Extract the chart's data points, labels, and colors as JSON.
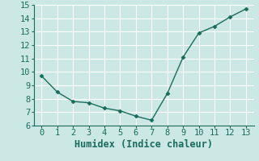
{
  "x": [
    0,
    1,
    2,
    3,
    4,
    5,
    6,
    7,
    8,
    9,
    10,
    11,
    12,
    13
  ],
  "y": [
    9.7,
    8.5,
    7.8,
    7.7,
    7.3,
    7.1,
    6.7,
    6.4,
    8.4,
    11.1,
    12.9,
    13.4,
    14.1,
    14.7
  ],
  "xlabel": "Humidex (Indice chaleur)",
  "ylim": [
    6,
    15
  ],
  "xlim": [
    -0.5,
    13.5
  ],
  "yticks": [
    6,
    7,
    8,
    9,
    10,
    11,
    12,
    13,
    14,
    15
  ],
  "xticks": [
    0,
    1,
    2,
    3,
    4,
    5,
    6,
    7,
    8,
    9,
    10,
    11,
    12,
    13
  ],
  "line_color": "#1a6b5a",
  "marker_color": "#1a6b5a",
  "bg_color": "#cce8e4",
  "grid_color": "#ffffff",
  "spine_color": "#1a6b5a",
  "tick_label_fontsize": 7.5,
  "xlabel_fontsize": 8.5
}
